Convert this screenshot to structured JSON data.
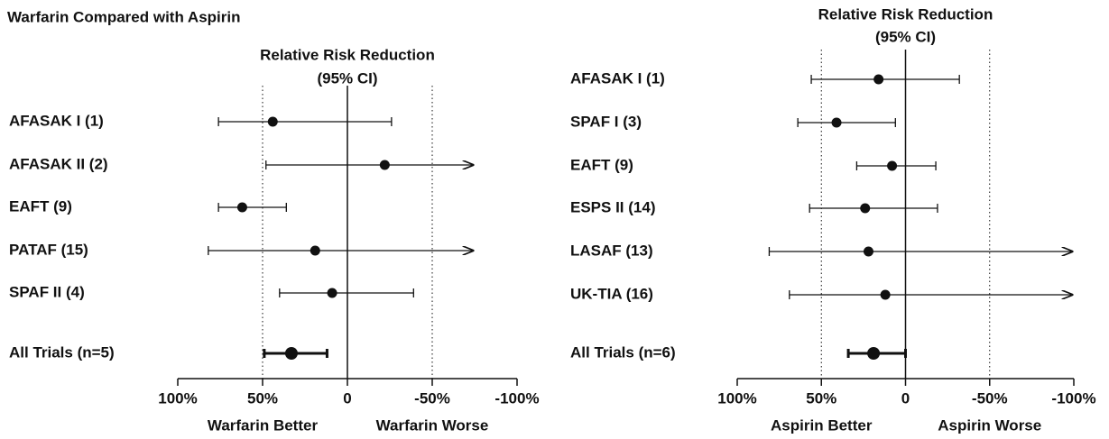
{
  "title": "Warfarin Compared with Aspirin",
  "chart_data": [
    {
      "type": "forest",
      "axis_title": [
        "Relative Risk Reduction",
        "(95% CI)"
      ],
      "xlim": [
        100,
        -100
      ],
      "xticks": [
        {
          "value": 100,
          "label": "100%"
        },
        {
          "value": 50,
          "label": "50%"
        },
        0,
        {
          "value": -50,
          "label": "-50%"
        },
        {
          "value": -100,
          "label": "-100%"
        }
      ],
      "reflines": [
        50,
        -50
      ],
      "better_label": "Warfarin Better",
      "worse_label": "Warfarin Worse",
      "rows": [
        {
          "label": "AFASAK I (1)",
          "value": 44,
          "ci": [
            76,
            -26
          ],
          "arrow": false
        },
        {
          "label": "AFASAK II (2)",
          "value": -22,
          "ci": [
            48,
            -74
          ],
          "arrow": true
        },
        {
          "label": "EAFT (9)",
          "value": 62,
          "ci": [
            76,
            36
          ],
          "arrow": false
        },
        {
          "label": "PATAF (15)",
          "value": 19,
          "ci": [
            82,
            -74
          ],
          "arrow": true
        },
        {
          "label": "SPAF II (4)",
          "value": 9,
          "ci": [
            40,
            -39
          ],
          "arrow": false
        },
        {
          "label": "All Trials (n=5)",
          "value": 33,
          "ci": [
            49,
            12
          ],
          "arrow": false,
          "pooled": true
        }
      ]
    },
    {
      "type": "forest",
      "axis_title": [
        "Relative Risk Reduction",
        "(95% CI)"
      ],
      "xlim": [
        100,
        -100
      ],
      "xticks": [
        {
          "value": 100,
          "label": "100%"
        },
        {
          "value": 50,
          "label": "50%"
        },
        0,
        {
          "value": -50,
          "label": "-50%"
        },
        {
          "value": -100,
          "label": "-100%"
        }
      ],
      "reflines": [
        50,
        -50
      ],
      "better_label": "Aspirin Better",
      "worse_label": "Aspirin Worse",
      "rows": [
        {
          "label": "AFASAK I (1)",
          "value": 16,
          "ci": [
            56,
            -32
          ],
          "arrow": false
        },
        {
          "label": "SPAF I (3)",
          "value": 41,
          "ci": [
            64,
            6
          ],
          "arrow": false
        },
        {
          "label": "EAFT (9)",
          "value": 8,
          "ci": [
            29,
            -18
          ],
          "arrow": false
        },
        {
          "label": "ESPS II (14)",
          "value": 24,
          "ci": [
            57,
            -19
          ],
          "arrow": false
        },
        {
          "label": "LASAF (13)",
          "value": 22,
          "ci": [
            81,
            -99
          ],
          "arrow": true
        },
        {
          "label": "UK-TIA (16)",
          "value": 12,
          "ci": [
            69,
            -99
          ],
          "arrow": true
        },
        {
          "label": "All Trials (n=6)",
          "value": 19,
          "ci": [
            34,
            0
          ],
          "arrow": false,
          "pooled": true
        }
      ]
    }
  ]
}
